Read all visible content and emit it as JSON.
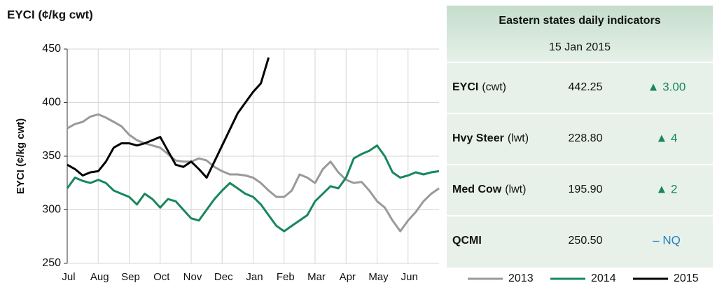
{
  "chart_data": {
    "type": "line",
    "title": "EYCI (¢/kg cwt)",
    "y_label": "EYCI (¢/kg cwt)",
    "x": [
      0,
      0.25,
      0.5,
      0.75,
      1,
      1.25,
      1.5,
      1.75,
      2,
      2.25,
      2.5,
      2.75,
      3,
      3.25,
      3.5,
      3.75,
      4,
      4.25,
      4.5,
      4.75,
      5,
      5.25,
      5.5,
      5.75,
      6,
      6.25,
      6.5,
      6.75,
      7,
      7.25,
      7.5,
      7.75,
      8,
      8.25,
      8.5,
      8.75,
      9,
      9.25,
      9.5,
      9.75,
      10,
      10.25,
      10.5,
      10.75,
      11,
      11.25,
      11.5,
      11.75,
      12
    ],
    "xlim": [
      0,
      12
    ],
    "xticks": [
      {
        "value": 0,
        "label": "Jul"
      },
      {
        "value": 1,
        "label": "Aug"
      },
      {
        "value": 2,
        "label": "Sep"
      },
      {
        "value": 3,
        "label": "Oct"
      },
      {
        "value": 4,
        "label": "Nov"
      },
      {
        "value": 5,
        "label": "Dec"
      },
      {
        "value": 6,
        "label": "Jan"
      },
      {
        "value": 7,
        "label": "Feb"
      },
      {
        "value": 8,
        "label": "Mar"
      },
      {
        "value": 9,
        "label": "Apr"
      },
      {
        "value": 10,
        "label": "May"
      },
      {
        "value": 11,
        "label": "Jun"
      }
    ],
    "ylim": [
      250,
      450
    ],
    "yticks": [
      250,
      300,
      350,
      400,
      450
    ],
    "grid": true,
    "series": [
      {
        "name": "2013",
        "color": "#9a9a9a",
        "values": [
          376,
          380,
          382,
          387,
          389,
          386,
          382,
          378,
          370,
          365,
          362,
          360,
          358,
          352,
          346,
          345,
          345,
          348,
          346,
          340,
          336,
          333,
          333,
          332,
          330,
          325,
          318,
          312,
          312,
          318,
          333,
          330,
          325,
          338,
          345,
          335,
          328,
          325,
          326,
          318,
          308,
          302,
          290,
          280,
          290,
          298,
          308,
          315,
          320
        ]
      },
      {
        "name": "2014",
        "color": "#17875c",
        "values": [
          320,
          330,
          327,
          325,
          328,
          325,
          318,
          315,
          312,
          305,
          315,
          310,
          302,
          310,
          308,
          300,
          292,
          290,
          300,
          310,
          318,
          325,
          320,
          315,
          312,
          305,
          295,
          285,
          280,
          285,
          290,
          295,
          308,
          315,
          322,
          320,
          330,
          348,
          352,
          355,
          360,
          350,
          335,
          330,
          332,
          335,
          333,
          335,
          336
        ]
      },
      {
        "name": "2015",
        "color": "#000000",
        "values": [
          342,
          338,
          332,
          335,
          336,
          345,
          358,
          362,
          362,
          360,
          362,
          365,
          368,
          355,
          342,
          340,
          345,
          338,
          330,
          345,
          360,
          375,
          390,
          400,
          410,
          418,
          442,
          null,
          null,
          null,
          null,
          null,
          null,
          null,
          null,
          null,
          null,
          null,
          null,
          null,
          null,
          null,
          null,
          null,
          null,
          null,
          null,
          null,
          null
        ]
      }
    ]
  },
  "panel": {
    "title": "Eastern states daily indicators",
    "date": "15 Jan 2015",
    "rows": [
      {
        "name": "EYCI",
        "unit": "(cwt)",
        "price": "442.25",
        "change": "▲ 3.00",
        "color": "#17875c"
      },
      {
        "name": "Hvy Steer",
        "unit": "(lwt)",
        "price": "228.80",
        "change": "▲ 4",
        "color": "#17875c"
      },
      {
        "name": "Med Cow",
        "unit": "(lwt)",
        "price": "195.90",
        "change": "▲ 2",
        "color": "#17875c"
      },
      {
        "name": "QCMI",
        "unit": "",
        "price": "250.50",
        "change": "– NQ",
        "color": "#2a7fc0"
      }
    ]
  }
}
